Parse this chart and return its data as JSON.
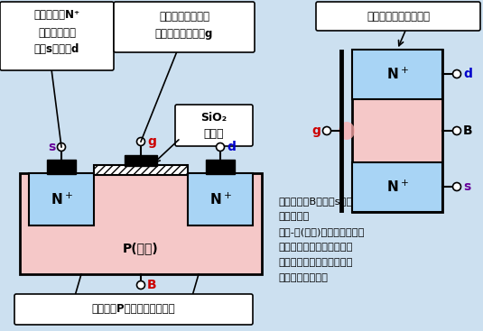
{
  "bg_color": "#cce0f0",
  "text_color_black": "#000000",
  "text_color_blue": "#0000cc",
  "text_color_red": "#cc0000",
  "text_color_purple": "#660099",
  "body_color": "#f5c8c8",
  "n_color": "#a8d4f5",
  "white": "#ffffff",
  "box1_lines": [
    "两个高掺杂N⁺",
    "区，分别引出",
    "源极s和漏极d"
  ],
  "box2_lines": [
    "绝缘层上制作一层",
    "金属铝，引出栅极g"
  ],
  "box3_text": "低掺杂的P型半导体作为衬底",
  "box4_text": "栅极和衬底间形成电容",
  "sio2_line1": "SiO₂",
  "sio2_line2": "绝缘层",
  "p_label": "P(衬底)",
  "b_label": "B",
  "right_text": [
    "通常将衬底B与源极s接在",
    "一起使用。",
    "当栅-源(衬底)间电压变化时，",
    "将改变衬底靠近绝缘层附处",
    "感应电荷的多少，从而控制",
    "漏极电流的大小。"
  ]
}
